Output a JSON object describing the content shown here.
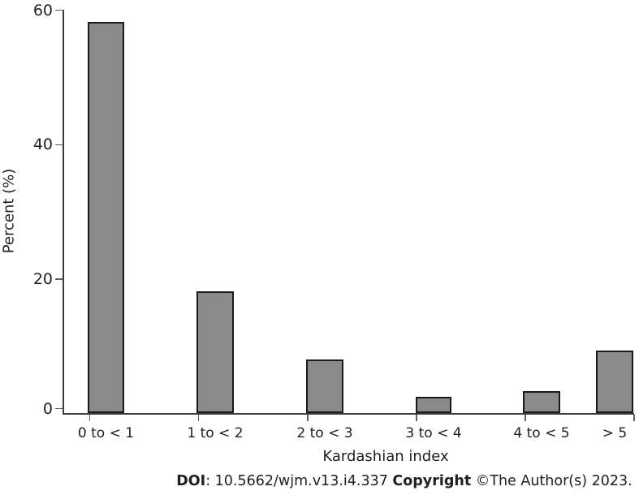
{
  "figure": {
    "y_axis_label": "Percent (%)",
    "x_axis_label": "Kardashian index",
    "caption_segments": [
      {
        "text": "DOI",
        "bold": true
      },
      {
        "text": ": 10.5662/wjm.v13.i4.337 ",
        "bold": false
      },
      {
        "text": "Copyright",
        "bold": true
      },
      {
        "text": " ©The Author(s) 2023.",
        "bold": false
      }
    ]
  },
  "colors": {
    "bar_fill": "#8a8a8a",
    "bar_border": "#1a1a1a",
    "axis_line": "#3d3d3d",
    "tick": "#5f5f5f",
    "text": "#1f1f1f",
    "background": "#ffffff"
  },
  "chart_data": {
    "type": "bar",
    "title": "",
    "categories": [
      "0 to < 1",
      "1 to < 2",
      "2 to < 3",
      "3 to < 4",
      "4 to < 5",
      "> 5"
    ],
    "values": [
      58.3,
      18.2,
      8.0,
      2.5,
      3.3,
      9.4
    ],
    "xlabel": "Kardashian index",
    "ylabel": "Percent (%)",
    "ylim": [
      0,
      60
    ],
    "yticks": [
      0,
      20,
      40,
      60
    ],
    "grid": false,
    "legend": null,
    "bar_style": "single-series gray histogram, outlined bars, ticks at bin edges"
  }
}
